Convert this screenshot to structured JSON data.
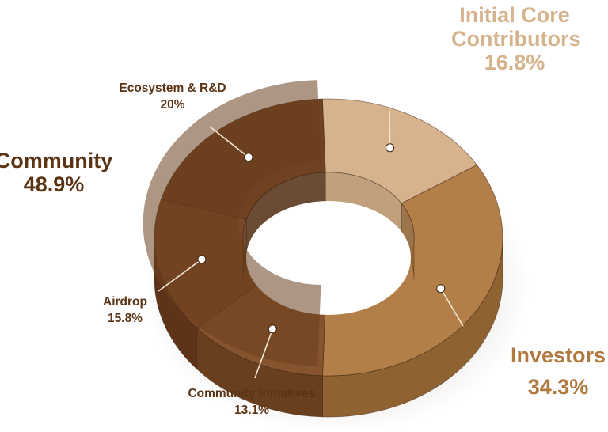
{
  "chart_data": {
    "type": "pie",
    "style": "3d-donut",
    "groups": [
      {
        "name": "Initial Core Contributors",
        "value": "16.8%",
        "color": "#d6b38d"
      },
      {
        "name": "Investors",
        "value": "34.3%",
        "color": "#b27f48"
      },
      {
        "name": "Community",
        "value": "48.9%",
        "color": "#7a4a26"
      }
    ],
    "slices": [
      {
        "label": "Initial Core Contributors",
        "value": 16.8,
        "display": "16.8%",
        "group": "Initial Core Contributors",
        "color": "#d6b38d",
        "side": "#b8946a"
      },
      {
        "label": "Investors",
        "value": 34.3,
        "display": "34.3%",
        "group": "Investors",
        "color": "#b27f48",
        "side": "#8f6232"
      },
      {
        "label": "Community Initiatives",
        "value": 13.1,
        "display": "13.1%",
        "group": "Community",
        "color": "#85532d",
        "side": "#6a3f1e"
      },
      {
        "label": "Airdrop",
        "value": 15.8,
        "display": "15.8%",
        "group": "Community",
        "color": "#7a4826",
        "side": "#5e3418"
      },
      {
        "label": "Ecosystem & R&D",
        "value": 20,
        "display": "20%",
        "group": "Community",
        "color": "#6f4221",
        "side": "#532f15"
      }
    ]
  }
}
